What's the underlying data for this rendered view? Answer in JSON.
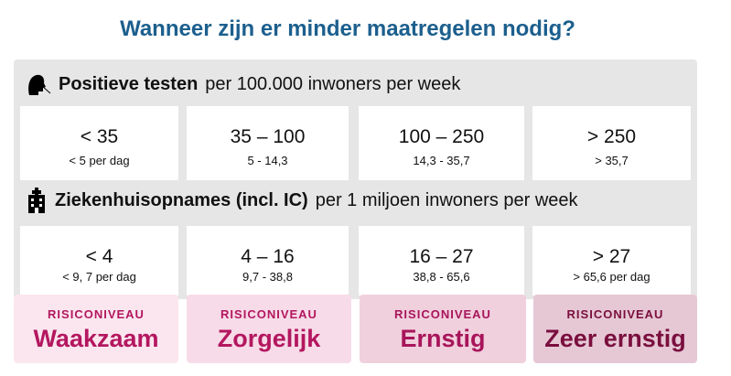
{
  "title": "Wanneer zijn er minder maatregelen nodig?",
  "sections": [
    {
      "label": "Positieve testen",
      "sub": "per 100.000 inwoners per week",
      "icon": "person-swab-icon",
      "cells": [
        {
          "big": "< 35",
          "small": "< 5 per dag"
        },
        {
          "big": "35 – 100",
          "small": "5 - 14,3"
        },
        {
          "big": "100 – 250",
          "small": "14,3  -  35,7"
        },
        {
          "big": "> 250",
          "small": "> 35,7"
        }
      ]
    },
    {
      "label": "Ziekenhuisopnames (incl. IC)",
      "sub": "per 1 miljoen inwoners per week",
      "icon": "hospital-icon",
      "cells": [
        {
          "big": "< 4",
          "small": "< 9, 7 per dag"
        },
        {
          "big": "4 – 16",
          "small": "9,7  -  38,8"
        },
        {
          "big": "16 – 27",
          "small": "38,8 - 65,6"
        },
        {
          "big": "> 27",
          "small": "> 65,6 per dag"
        }
      ]
    }
  ],
  "levels": [
    {
      "label": "RISICONIVEAU",
      "name": "Waakzaam",
      "bg": "#fbe6ef",
      "color": "#b3175f"
    },
    {
      "label": "RISICONIVEAU",
      "name": "Zorgelijk",
      "bg": "#f7dbe8",
      "color": "#b3175f"
    },
    {
      "label": "RISICONIVEAU",
      "name": "Ernstig",
      "bg": "#f1d0de",
      "color": "#a8155a"
    },
    {
      "label": "RISICONIVEAU",
      "name": "Zeer ernstig",
      "bg": "#e6c8d5",
      "color": "#7a0f3e"
    }
  ]
}
